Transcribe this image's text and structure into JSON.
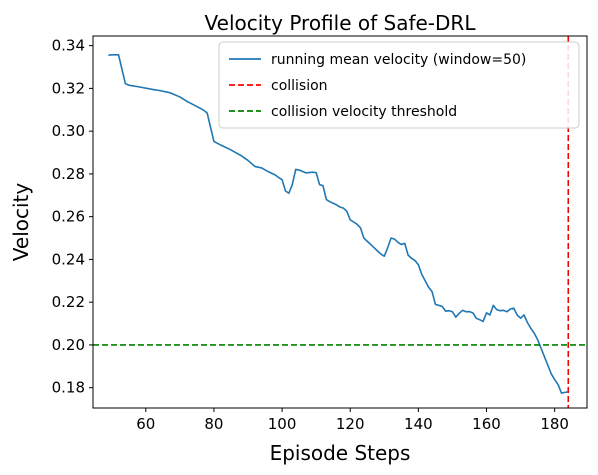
{
  "chart_data": {
    "type": "line",
    "title": "Velocity Profile of Safe-DRL",
    "xlabel": "Episode Steps",
    "ylabel": "Velocity",
    "xlim": [
      44.5,
      189.5
    ],
    "ylim": [
      0.1705,
      0.3445
    ],
    "xticks": [
      60,
      80,
      100,
      120,
      140,
      160,
      180
    ],
    "yticks": [
      0.18,
      0.2,
      0.22,
      0.24,
      0.26,
      0.28,
      0.3,
      0.32,
      0.34
    ],
    "xtick_labels": [
      "60",
      "80",
      "100",
      "120",
      "140",
      "160",
      "180"
    ],
    "ytick_labels": [
      "0.18",
      "0.20",
      "0.22",
      "0.24",
      "0.26",
      "0.28",
      "0.30",
      "0.32",
      "0.34"
    ],
    "grid": false,
    "legend_position": "top-right",
    "series": [
      {
        "name": "running mean velocity (window=50)",
        "color": "#1f77b4",
        "style": "solid",
        "x": [
          49,
          50,
          52,
          54,
          55,
          58,
          62,
          64,
          67,
          70,
          72,
          75,
          77,
          78,
          80,
          82,
          85,
          88,
          90,
          91,
          92,
          94,
          96,
          98,
          99,
          100,
          101,
          102,
          103,
          104,
          105,
          107,
          109,
          110,
          111,
          112,
          113,
          114,
          116,
          117,
          118,
          119,
          120,
          121,
          122,
          123,
          124,
          125,
          126,
          127,
          128,
          129,
          130,
          131,
          132,
          133,
          134,
          135,
          136,
          137,
          138,
          139,
          140,
          141,
          142,
          143,
          144,
          145,
          146,
          147,
          148,
          149,
          150,
          151,
          152,
          153,
          154,
          155,
          156,
          157,
          158,
          159,
          160,
          161,
          162,
          163,
          164,
          165,
          166,
          167,
          168,
          169,
          170,
          171,
          172,
          173,
          174,
          175,
          176,
          177,
          178,
          179,
          180,
          181,
          182,
          183,
          184
        ],
        "y": [
          0.3355,
          0.3357,
          0.3357,
          0.3222,
          0.3215,
          0.3207,
          0.3195,
          0.319,
          0.318,
          0.316,
          0.314,
          0.3115,
          0.3098,
          0.3085,
          0.2952,
          0.2935,
          0.2912,
          0.2885,
          0.2863,
          0.2849,
          0.2835,
          0.2828,
          0.281,
          0.2795,
          0.2783,
          0.2773,
          0.272,
          0.271,
          0.275,
          0.2821,
          0.2818,
          0.2805,
          0.2808,
          0.2806,
          0.275,
          0.2745,
          0.268,
          0.267,
          0.2655,
          0.2645,
          0.264,
          0.2625,
          0.2585,
          0.2575,
          0.2565,
          0.2548,
          0.25,
          0.2485,
          0.247,
          0.2455,
          0.244,
          0.2425,
          0.2415,
          0.2455,
          0.25,
          0.2495,
          0.248,
          0.247,
          0.2475,
          0.242,
          0.2405,
          0.2395,
          0.2375,
          0.233,
          0.23,
          0.227,
          0.225,
          0.219,
          0.2185,
          0.218,
          0.2158,
          0.216,
          0.2155,
          0.213,
          0.2148,
          0.2162,
          0.2155,
          0.2156,
          0.215,
          0.2125,
          0.2118,
          0.211,
          0.215,
          0.214,
          0.2185,
          0.2165,
          0.216,
          0.2162,
          0.2155,
          0.2168,
          0.2172,
          0.214,
          0.2125,
          0.214,
          0.2105,
          0.2078,
          0.2055,
          0.2025,
          0.1985,
          0.1945,
          0.1905,
          0.1865,
          0.1838,
          0.1815,
          0.1775,
          0.1778,
          0.178
        ]
      },
      {
        "name": "collision",
        "color": "#ff0000",
        "style": "dashed",
        "orientation": "vertical",
        "value": 184
      },
      {
        "name": "collision velocity threshold",
        "color": "#008000",
        "style": "dashed",
        "orientation": "horizontal",
        "value": 0.2
      }
    ]
  }
}
